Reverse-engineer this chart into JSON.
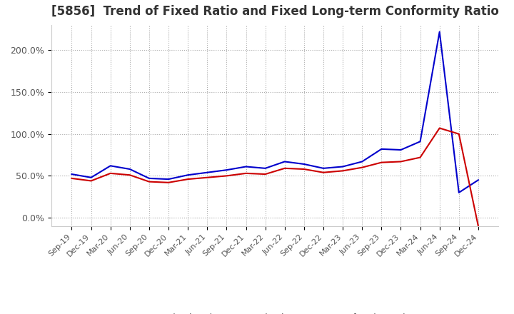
{
  "title": "[5856]  Trend of Fixed Ratio and Fixed Long-term Conformity Ratio",
  "title_fontsize": 12,
  "x_labels": [
    "Sep-19",
    "Dec-19",
    "Mar-20",
    "Jun-20",
    "Sep-20",
    "Dec-20",
    "Mar-21",
    "Jun-21",
    "Sep-21",
    "Dec-21",
    "Mar-22",
    "Jun-22",
    "Sep-22",
    "Dec-22",
    "Mar-23",
    "Jun-23",
    "Sep-23",
    "Dec-23",
    "Mar-24",
    "Jun-24",
    "Sep-24",
    "Dec-24"
  ],
  "fixed_ratio": [
    52,
    48,
    62,
    58,
    47,
    46,
    51,
    54,
    57,
    61,
    59,
    67,
    64,
    59,
    61,
    67,
    82,
    81,
    91,
    222,
    30,
    45
  ],
  "fixed_lt_ratio": [
    47,
    44,
    53,
    51,
    43,
    42,
    46,
    48,
    50,
    53,
    52,
    59,
    58,
    54,
    56,
    60,
    66,
    67,
    72,
    107,
    100,
    -10
  ],
  "fixed_ratio_color": "#0000cc",
  "fixed_lt_ratio_color": "#cc0000",
  "ylim": [
    -10,
    230
  ],
  "yticks": [
    0,
    50,
    100,
    150,
    200
  ],
  "ytick_labels": [
    "0.0%",
    "50.0%",
    "100.0%",
    "150.0%",
    "200.0%"
  ],
  "grid_color": "#aaaaaa",
  "bg_color": "#ffffff",
  "legend_labels": [
    "Fixed Ratio",
    "Fixed Long-term Conformity Ratio"
  ],
  "line_width": 1.5
}
